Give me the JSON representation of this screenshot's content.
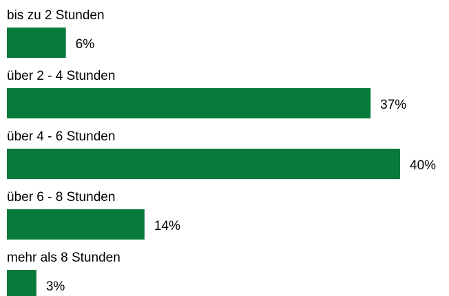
{
  "chart_data": {
    "type": "hbar",
    "categories": [
      "bis zu 2 Stunden",
      "über 2 - 4 Stunden",
      "über 4 - 6 Stunden",
      "über 6 - 8 Stunden",
      "mehr als 8 Stunden"
    ],
    "values": [
      6,
      37,
      40,
      14,
      3
    ],
    "value_labels": [
      "6%",
      "37%",
      "40%",
      "14%",
      "3%"
    ],
    "color": "#077a3c"
  }
}
